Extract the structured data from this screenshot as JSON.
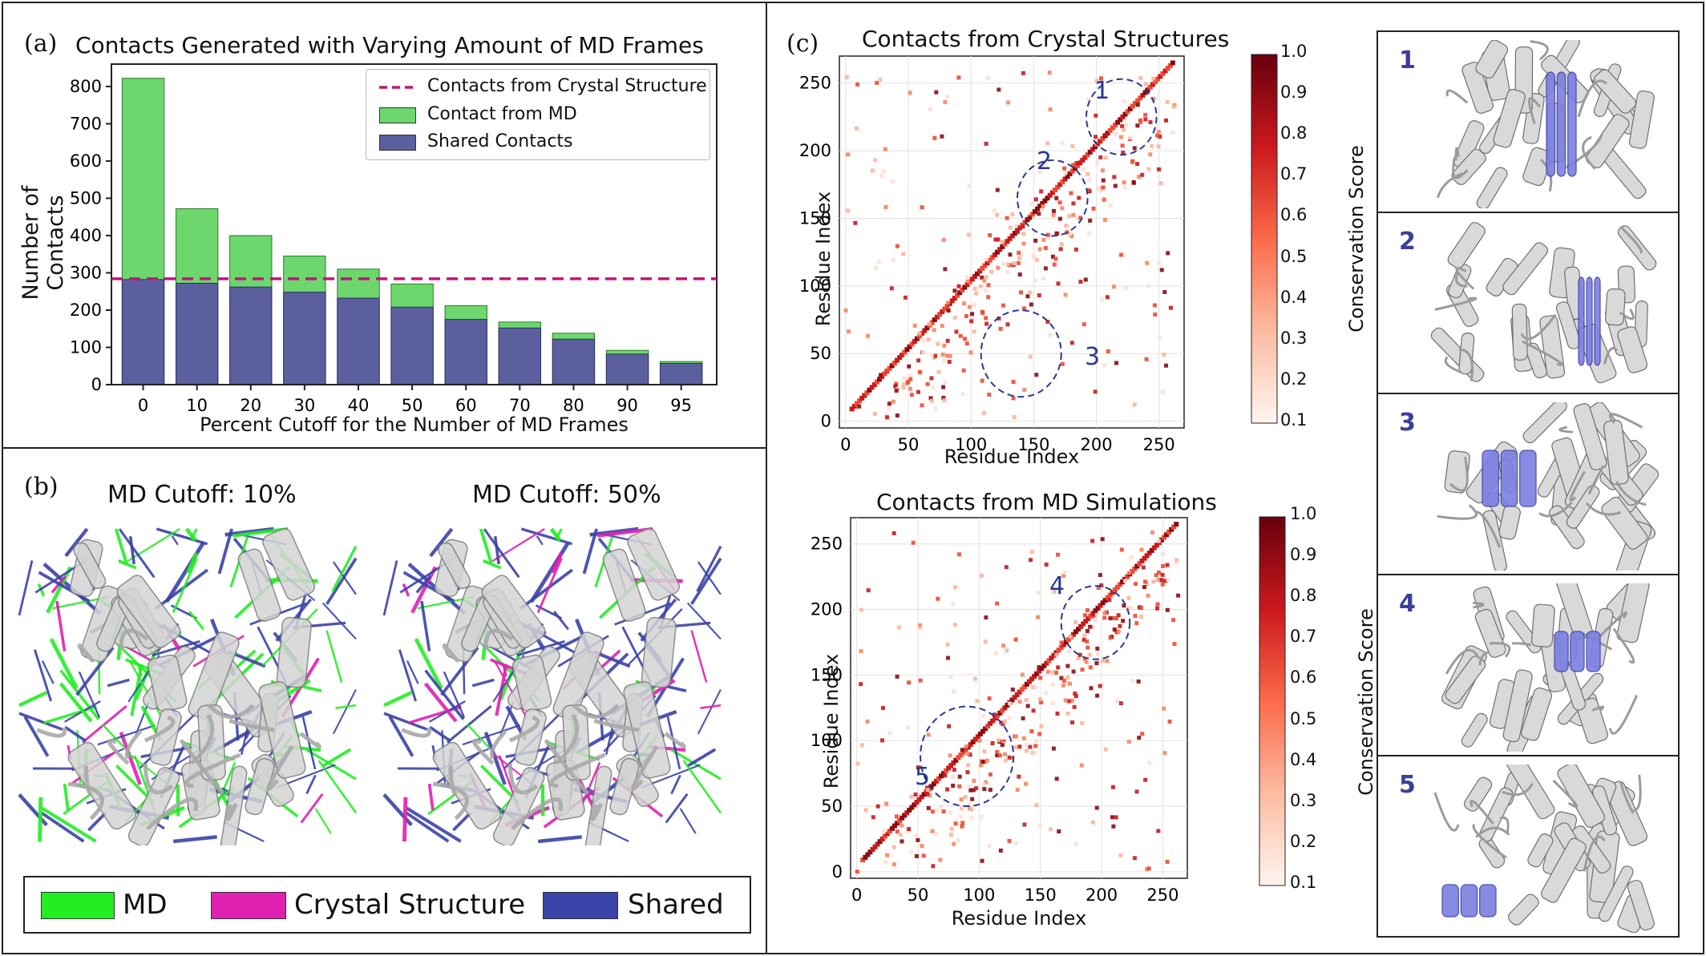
{
  "panel_a": {
    "label": "(a)",
    "title": "Contacts Generated with Varying Amount of MD Frames",
    "legend": {
      "crystal": "Contacts from Crystal Structure",
      "md": "Contact from MD",
      "shared": "Shared Contacts"
    },
    "colors": {
      "md": "#6dd76d",
      "shared": "#5b5f9e",
      "crystal_line": "#c0147a"
    }
  },
  "panel_b": {
    "label": "(b)",
    "left_title": "MD Cutoff: 10%",
    "right_title": "MD Cutoff: 50%",
    "legend": {
      "md": "MD",
      "crystal": "Crystal Structure",
      "shared": "Shared"
    },
    "colors": {
      "md": "#22ee22",
      "crystal": "#e020b0",
      "shared": "#3a43a8"
    }
  },
  "panel_c": {
    "label": "(c)",
    "top_title": "Contacts from Crystal Structures",
    "bottom_title": "Contacts from MD Simulations",
    "xlabel": "Residue Index",
    "ylabel": "Residue Index",
    "cbar_label": "Conservation Score",
    "cbar_ticks": [
      "1.0",
      "0.9",
      "0.8",
      "0.7",
      "0.6",
      "0.5",
      "0.4",
      "0.3",
      "0.2",
      "0.1"
    ],
    "top_annotations": [
      "1",
      "2",
      "3"
    ],
    "bottom_annotations": [
      "4",
      "5"
    ],
    "thumb_labels": [
      "1",
      "2",
      "3",
      "4",
      "5"
    ]
  },
  "chart_data": [
    {
      "type": "bar",
      "title": "Contacts Generated with Varying Amount of MD Frames",
      "xlabel": "Percent Cutoff for the Number of MD Frames",
      "ylabel": "Number of Contacts",
      "categories": [
        "0",
        "10",
        "20",
        "30",
        "40",
        "50",
        "60",
        "70",
        "80",
        "90",
        "95"
      ],
      "series": [
        {
          "name": "Contact from MD",
          "values": [
            822,
            472,
            400,
            345,
            310,
            270,
            212,
            168,
            138,
            92,
            62
          ]
        },
        {
          "name": "Shared Contacts",
          "values": [
            282,
            272,
            262,
            248,
            232,
            208,
            175,
            152,
            122,
            82,
            57
          ]
        }
      ],
      "reference_line": {
        "name": "Contacts from Crystal Structure",
        "value": 284
      },
      "ylim": [
        0,
        860
      ],
      "yticks": [
        "0",
        "100",
        "200",
        "300",
        "400",
        "500",
        "600",
        "700",
        "800"
      ],
      "legend": "top-right",
      "grid": false
    },
    {
      "type": "heatmap",
      "title": "Contacts from Crystal Structures",
      "xlabel": "Residue Index",
      "ylabel": "Residue Index",
      "xlim": [
        -5,
        270
      ],
      "ylim": [
        -5,
        270
      ],
      "xticks": [
        "0",
        "50",
        "100",
        "150",
        "200",
        "250"
      ],
      "yticks": [
        "0",
        "50",
        "100",
        "150",
        "200",
        "250"
      ],
      "colorbar": {
        "label": "Conservation Score",
        "range": [
          0.1,
          1.0
        ]
      },
      "grid": true
    },
    {
      "type": "heatmap",
      "title": "Contacts from MD Simulations",
      "xlabel": "Residue Index",
      "ylabel": "Residue Index",
      "xlim": [
        -5,
        270
      ],
      "ylim": [
        -5,
        270
      ],
      "xticks": [
        "0",
        "50",
        "100",
        "150",
        "200",
        "250"
      ],
      "yticks": [
        "0",
        "50",
        "100",
        "150",
        "200",
        "250"
      ],
      "colorbar": {
        "label": "Conservation Score",
        "range": [
          0.1,
          1.0
        ]
      },
      "grid": true
    }
  ]
}
